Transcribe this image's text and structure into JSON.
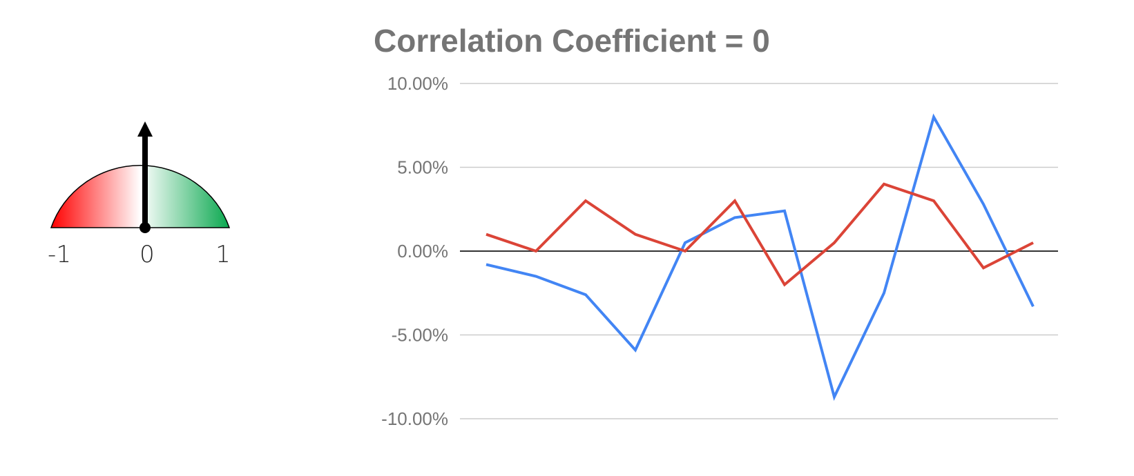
{
  "gauge": {
    "min_label": "-1",
    "mid_label": "0",
    "max_label": "1",
    "value": 0,
    "colors": {
      "negative": "#ff0000",
      "neutral": "#ffffff",
      "positive": "#0aa84f",
      "needle": "#000000"
    }
  },
  "chart_data": {
    "type": "line",
    "title": "Correlation Coefficient = 0",
    "xlabel": "",
    "ylabel": "",
    "ylim": [
      -0.1,
      0.1
    ],
    "yticks": [
      {
        "value": 0.1,
        "label": "10.00%"
      },
      {
        "value": 0.05,
        "label": "5.00%"
      },
      {
        "value": 0.0,
        "label": "0.00%"
      },
      {
        "value": -0.05,
        "label": "-5.00%"
      },
      {
        "value": -0.1,
        "label": "-10.00%"
      }
    ],
    "grid": true,
    "x": [
      1,
      2,
      3,
      4,
      5,
      6,
      7,
      8,
      9,
      10,
      11,
      12
    ],
    "series": [
      {
        "color": "#4285f4",
        "values": [
          -0.008,
          -0.015,
          -0.026,
          -0.059,
          0.005,
          0.02,
          0.024,
          -0.087,
          -0.025,
          0.08,
          0.028,
          -0.033
        ]
      },
      {
        "color": "#db4437",
        "values": [
          0.01,
          0.0,
          0.03,
          0.01,
          0.0,
          0.03,
          -0.02,
          0.005,
          0.04,
          0.03,
          -0.01,
          0.005
        ]
      }
    ]
  }
}
